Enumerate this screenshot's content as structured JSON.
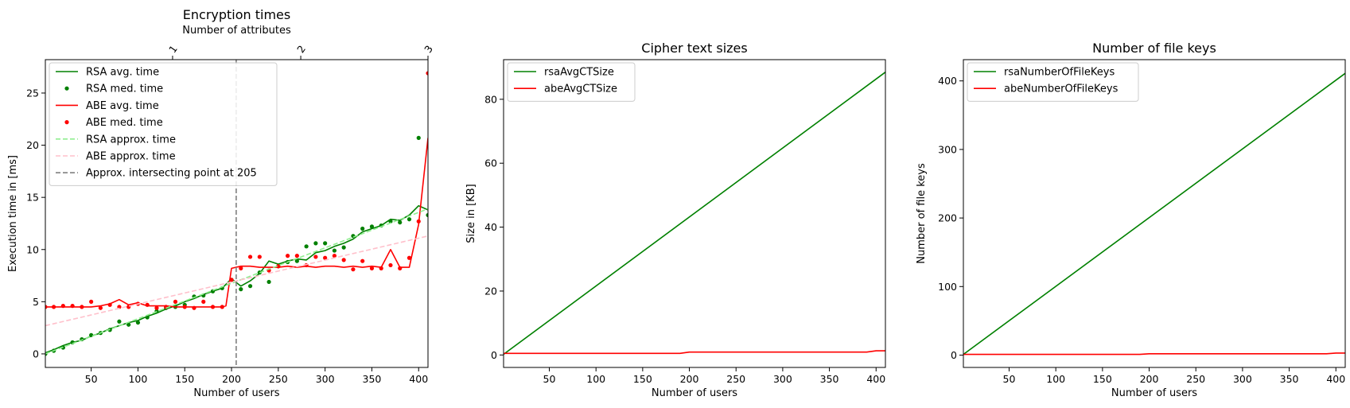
{
  "chart_data": [
    {
      "type": "line",
      "title": "Encryption times",
      "xlabel": "Number of users",
      "ylabel": "Execution time in [ms]",
      "secondary_xlabel": "Number of attributes",
      "secondary_xticks": [
        1,
        2,
        3
      ],
      "secondary_xtick_positions_users": [
        137,
        274,
        410
      ],
      "xlim": [
        1,
        410
      ],
      "ylim": [
        -1.3,
        28.2
      ],
      "xticks": [
        50,
        100,
        150,
        200,
        250,
        300,
        350,
        400
      ],
      "yticks": [
        0,
        5,
        10,
        15,
        20,
        25
      ],
      "legend_position": "upper-left",
      "series": [
        {
          "name": "RSA avg. time",
          "color": "#008000",
          "style": "solid",
          "x": [
            1,
            10,
            20,
            30,
            40,
            50,
            60,
            70,
            80,
            90,
            100,
            110,
            120,
            130,
            140,
            150,
            160,
            170,
            180,
            190,
            200,
            210,
            220,
            230,
            240,
            250,
            260,
            270,
            280,
            290,
            300,
            310,
            320,
            330,
            340,
            350,
            360,
            370,
            380,
            390,
            400,
            410
          ],
          "y": [
            0.1,
            0.4,
            0.8,
            1.1,
            1.3,
            1.7,
            2.0,
            2.4,
            2.7,
            3.0,
            3.2,
            3.6,
            3.9,
            4.3,
            4.6,
            5.0,
            5.3,
            5.7,
            6.0,
            6.3,
            7.2,
            6.5,
            7.0,
            7.7,
            8.9,
            8.6,
            8.9,
            9.1,
            9.0,
            9.7,
            9.9,
            10.3,
            10.6,
            11.0,
            11.7,
            12.0,
            12.3,
            12.9,
            12.8,
            13.3,
            14.2,
            13.8
          ]
        },
        {
          "name": "RSA med. time",
          "color": "#008000",
          "style": "points",
          "x": [
            1,
            10,
            20,
            30,
            40,
            50,
            60,
            70,
            80,
            90,
            100,
            110,
            120,
            130,
            140,
            150,
            160,
            170,
            180,
            190,
            200,
            210,
            220,
            230,
            240,
            250,
            260,
            270,
            280,
            290,
            300,
            310,
            320,
            330,
            340,
            350,
            360,
            370,
            380,
            390,
            400,
            410
          ],
          "y": [
            0.0,
            0.3,
            0.6,
            1.1,
            1.4,
            1.8,
            2.0,
            2.3,
            3.1,
            2.8,
            3.0,
            3.5,
            4.1,
            4.4,
            4.5,
            4.7,
            5.5,
            5.6,
            6.0,
            6.3,
            7.1,
            6.2,
            6.5,
            7.8,
            6.9,
            8.4,
            8.8,
            8.9,
            10.3,
            10.6,
            10.6,
            9.9,
            10.2,
            11.3,
            12.0,
            12.2,
            12.3,
            12.7,
            12.6,
            12.9,
            20.7,
            13.3
          ]
        },
        {
          "name": "ABE avg. time",
          "color": "#ff0000",
          "style": "solid",
          "x": [
            1,
            10,
            20,
            30,
            40,
            50,
            60,
            70,
            80,
            90,
            100,
            110,
            120,
            130,
            140,
            150,
            160,
            170,
            180,
            190,
            194,
            200,
            210,
            220,
            230,
            240,
            250,
            260,
            270,
            280,
            290,
            300,
            310,
            320,
            330,
            340,
            350,
            360,
            370,
            380,
            390,
            400,
            410
          ],
          "y": [
            4.5,
            4.5,
            4.5,
            4.5,
            4.5,
            4.5,
            4.6,
            4.8,
            5.2,
            4.7,
            4.9,
            4.6,
            4.6,
            4.6,
            4.5,
            4.5,
            4.5,
            4.5,
            4.5,
            4.5,
            4.6,
            8.2,
            8.4,
            8.4,
            8.3,
            8.3,
            8.3,
            8.4,
            8.3,
            8.4,
            8.3,
            8.4,
            8.4,
            8.3,
            8.4,
            8.3,
            8.4,
            8.3,
            10.0,
            8.3,
            8.3,
            12.4,
            20.7
          ]
        },
        {
          "name": "ABE med. time",
          "color": "#ff0000",
          "style": "points",
          "x": [
            1,
            10,
            20,
            30,
            40,
            50,
            60,
            70,
            80,
            90,
            100,
            110,
            120,
            130,
            140,
            150,
            160,
            170,
            180,
            190,
            200,
            210,
            220,
            230,
            240,
            250,
            260,
            270,
            280,
            290,
            300,
            310,
            320,
            330,
            340,
            350,
            360,
            370,
            380,
            390,
            400,
            410
          ],
          "y": [
            4.5,
            4.5,
            4.6,
            4.6,
            4.5,
            5.0,
            4.4,
            4.7,
            4.5,
            4.5,
            4.8,
            4.7,
            4.4,
            4.5,
            5.0,
            4.5,
            4.4,
            5.0,
            4.5,
            4.5,
            7.1,
            8.2,
            9.3,
            9.3,
            8.0,
            8.4,
            9.4,
            9.4,
            8.5,
            9.3,
            9.2,
            9.4,
            9.0,
            8.1,
            8.9,
            8.2,
            8.2,
            8.5,
            8.2,
            9.2,
            12.7,
            26.9
          ]
        },
        {
          "name": "RSA approx. time",
          "color": "#90ee90",
          "style": "dashed",
          "x": [
            1,
            410
          ],
          "y": [
            0.0,
            13.9
          ]
        },
        {
          "name": "ABE approx. time",
          "color": "#ffc0cb",
          "style": "dashed",
          "x": [
            1,
            410
          ],
          "y": [
            2.7,
            11.3
          ]
        },
        {
          "name": "Approx. intersecting point at 205",
          "color": "#808080",
          "style": "vline",
          "x": [
            205,
            205
          ]
        }
      ]
    },
    {
      "type": "line",
      "title": "Cipher text sizes",
      "xlabel": "Number of users",
      "ylabel": "Size in [KB]",
      "xlim": [
        1,
        410
      ],
      "ylim": [
        -3.9,
        92.4
      ],
      "xticks": [
        50,
        100,
        150,
        200,
        250,
        300,
        350,
        400
      ],
      "yticks": [
        0,
        20,
        40,
        60,
        80
      ],
      "legend_position": "upper-left",
      "series": [
        {
          "name": "rsaAvgCTSize",
          "color": "#008000",
          "style": "solid",
          "x": [
            1,
            410
          ],
          "y": [
            0.2,
            88.5
          ]
        },
        {
          "name": "abeAvgCTSize",
          "color": "#ff0000",
          "style": "solid",
          "x": [
            1,
            190,
            200,
            390,
            400,
            410
          ],
          "y": [
            0.5,
            0.5,
            0.9,
            0.9,
            1.3,
            1.3
          ]
        }
      ]
    },
    {
      "type": "line",
      "title": "Number of file keys",
      "xlabel": "Number of users",
      "ylabel": "Number of file keys",
      "xlim": [
        1,
        410
      ],
      "ylim": [
        -18,
        431
      ],
      "xticks": [
        50,
        100,
        150,
        200,
        250,
        300,
        350,
        400
      ],
      "yticks": [
        0,
        100,
        200,
        300,
        400
      ],
      "legend_position": "upper-left",
      "series": [
        {
          "name": "rsaNumberOfFileKeys",
          "color": "#008000",
          "style": "solid",
          "x": [
            1,
            410
          ],
          "y": [
            1,
            411
          ]
        },
        {
          "name": "abeNumberOfFileKeys",
          "color": "#ff0000",
          "style": "solid",
          "x": [
            1,
            190,
            200,
            390,
            400,
            410
          ],
          "y": [
            1,
            1,
            2,
            2,
            3,
            3
          ]
        }
      ]
    }
  ]
}
